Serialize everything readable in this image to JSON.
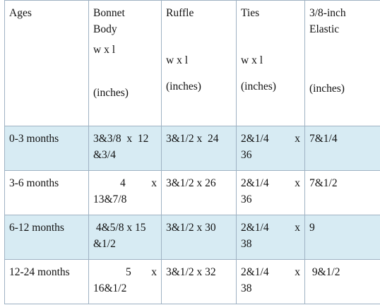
{
  "table": {
    "headers": {
      "ages": "Ages",
      "bonnet": [
        "Bonnet",
        "Body",
        "w x l",
        "(inches)"
      ],
      "ruffle": [
        "Ruffle",
        "w x l",
        "(inches)"
      ],
      "ties": [
        "Ties",
        "w x l",
        "(inches)"
      ],
      "elastic": [
        "3/8-inch",
        "Elastic",
        "(inches)"
      ]
    },
    "rows": [
      {
        "age": "0-3 months",
        "bonnet_a": "3&3/8  x  12",
        "bonnet_b": "&3/4",
        "ruffle": "3&1/2 x  24",
        "ties_a": "2&1/4",
        "ties_x": "x",
        "ties_b": "36",
        "elastic": "7&1/4"
      },
      {
        "age": "3-6 months",
        "bonnet_a": "4",
        "bonnet_x": "x",
        "bonnet_b": "13&7/8",
        "ruffle": "3&1/2 x 26",
        "ties_a": "2&1/4",
        "ties_x": "x",
        "ties_b": "36",
        "elastic": "7&1/2"
      },
      {
        "age": "6-12 months",
        "bonnet_a": " 4&5/8 x 15",
        "bonnet_b": "&1/2",
        "ruffle": "3&1/2 x 30",
        "ties_a": "2&1/4",
        "ties_x": "x",
        "ties_b": "38",
        "elastic": "9"
      },
      {
        "age": "12-24 months",
        "bonnet_a": "5",
        "bonnet_x": "x",
        "bonnet_b": "16&1/2",
        "ruffle": "3&1/2 x 32",
        "ties_a": "2&1/4",
        "ties_x": "x",
        "ties_b": "38",
        "elastic": " 9&1/2"
      }
    ]
  }
}
